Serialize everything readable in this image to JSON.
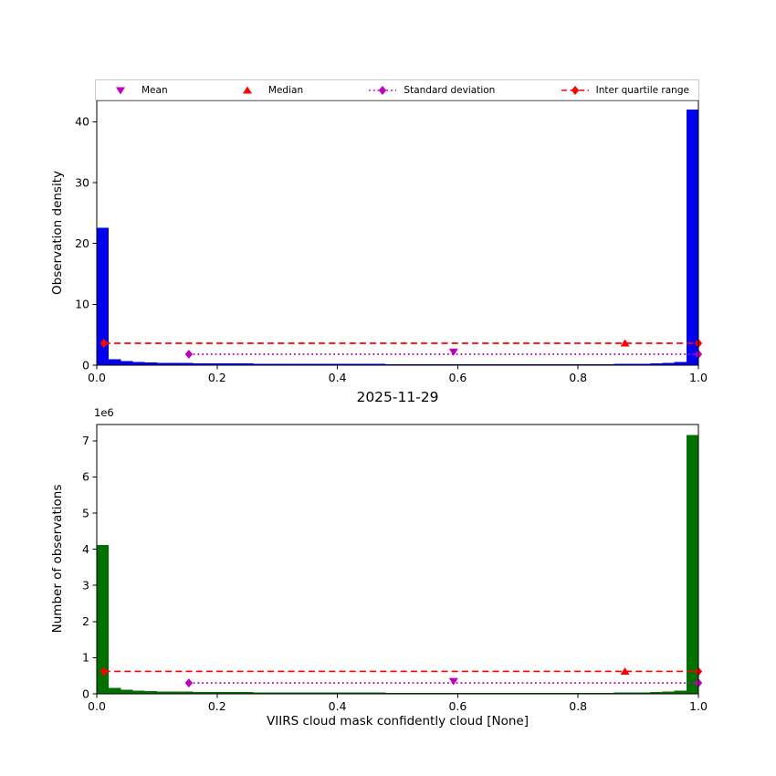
{
  "figure": {
    "title": "2025-11-29",
    "xlabel": "VIIRS cloud mask confidently cloud [None]",
    "background": "#ffffff"
  },
  "legend": {
    "items": [
      {
        "label": "Mean",
        "marker": "triangle-down",
        "line": "none",
        "color": "#bf00bf"
      },
      {
        "label": "Median",
        "marker": "triangle-up",
        "line": "none",
        "color": "#ff0000"
      },
      {
        "label": "Standard deviation",
        "marker": "diamond",
        "line": "dotted",
        "color": "#bf00bf"
      },
      {
        "label": "Inter quartile range",
        "marker": "diamond",
        "line": "dashed",
        "color": "#ff0000"
      }
    ]
  },
  "chart_data": [
    {
      "type": "bar",
      "title": "",
      "xlabel": "",
      "ylabel": "Observation density",
      "bar_color": "#0000ee",
      "grid": false,
      "xlim": [
        0.0,
        1.0
      ],
      "ylim": [
        0,
        43.5
      ],
      "bin_start": 0.0,
      "bin_width": 0.02,
      "xticks": [
        0.0,
        0.2,
        0.4,
        0.6,
        0.8,
        1.0
      ],
      "xtick_labels": [
        "0.0",
        "0.2",
        "0.4",
        "0.6",
        "0.8",
        "1.0"
      ],
      "yticks": [
        0,
        10,
        20,
        30,
        40
      ],
      "ytick_labels": [
        "0",
        "10",
        "20",
        "30",
        "40"
      ],
      "values": [
        22.6,
        1.0,
        0.65,
        0.5,
        0.45,
        0.4,
        0.38,
        0.35,
        0.33,
        0.31,
        0.3,
        0.28,
        0.27,
        0.26,
        0.25,
        0.24,
        0.23,
        0.22,
        0.22,
        0.21,
        0.2,
        0.2,
        0.19,
        0.19,
        0.18,
        0.18,
        0.17,
        0.17,
        0.17,
        0.16,
        0.16,
        0.16,
        0.15,
        0.15,
        0.15,
        0.15,
        0.15,
        0.15,
        0.15,
        0.16,
        0.16,
        0.17,
        0.18,
        0.19,
        0.21,
        0.24,
        0.28,
        0.35,
        0.55,
        42.0
      ],
      "annotations": {
        "mean": {
          "x": 0.593,
          "y": 2.2,
          "color": "#bf00bf"
        },
        "median": {
          "x": 0.878,
          "y": 3.6,
          "color": "#ff0000"
        },
        "std_line": {
          "y": 1.8,
          "x_start": 0.153,
          "x_end": 1.0,
          "markers_x": [
            0.153,
            1.0
          ],
          "color": "#bf00bf"
        },
        "iqr_line": {
          "y": 3.6,
          "x_start": 0.012,
          "x_end": 1.0,
          "markers_x": [
            0.012,
            1.0
          ],
          "color": "#ff0000"
        }
      }
    },
    {
      "type": "bar",
      "title": "2025-11-29",
      "xlabel": "VIIRS cloud mask confidently cloud [None]",
      "ylabel": "Number of observations",
      "y_offset_text": "1e6",
      "bar_color": "#007000",
      "grid": false,
      "xlim": [
        0.0,
        1.0
      ],
      "ylim": [
        0,
        7450000
      ],
      "bin_start": 0.0,
      "bin_width": 0.02,
      "xticks": [
        0.0,
        0.2,
        0.4,
        0.6,
        0.8,
        1.0
      ],
      "xtick_labels": [
        "0.0",
        "0.2",
        "0.4",
        "0.6",
        "0.8",
        "1.0"
      ],
      "yticks": [
        0,
        1000000,
        2000000,
        3000000,
        4000000,
        5000000,
        6000000,
        7000000
      ],
      "ytick_labels": [
        "0",
        "1",
        "2",
        "3",
        "4",
        "5",
        "6",
        "7"
      ],
      "values": [
        4120000,
        170000,
        110000,
        85000,
        75000,
        68000,
        62000,
        58000,
        54000,
        51000,
        49000,
        47000,
        45000,
        43000,
        42000,
        40000,
        39000,
        38000,
        37000,
        36000,
        35000,
        34000,
        33000,
        32000,
        31000,
        30000,
        30000,
        29000,
        29000,
        28000,
        28000,
        27000,
        27000,
        26000,
        26000,
        26000,
        25000,
        25000,
        25000,
        26000,
        27000,
        28000,
        30000,
        32000,
        35000,
        40000,
        47000,
        58000,
        92000,
        7160000
      ],
      "annotations": {
        "mean": {
          "x": 0.593,
          "y": 350000,
          "color": "#bf00bf"
        },
        "median": {
          "x": 0.878,
          "y": 620000,
          "color": "#ff0000"
        },
        "std_line": {
          "y": 300000,
          "x_start": 0.153,
          "x_end": 1.0,
          "markers_x": [
            0.153,
            1.0
          ],
          "color": "#bf00bf"
        },
        "iqr_line": {
          "y": 620000,
          "x_start": 0.012,
          "x_end": 1.0,
          "markers_x": [
            0.012,
            1.0
          ],
          "color": "#ff0000"
        }
      }
    }
  ]
}
